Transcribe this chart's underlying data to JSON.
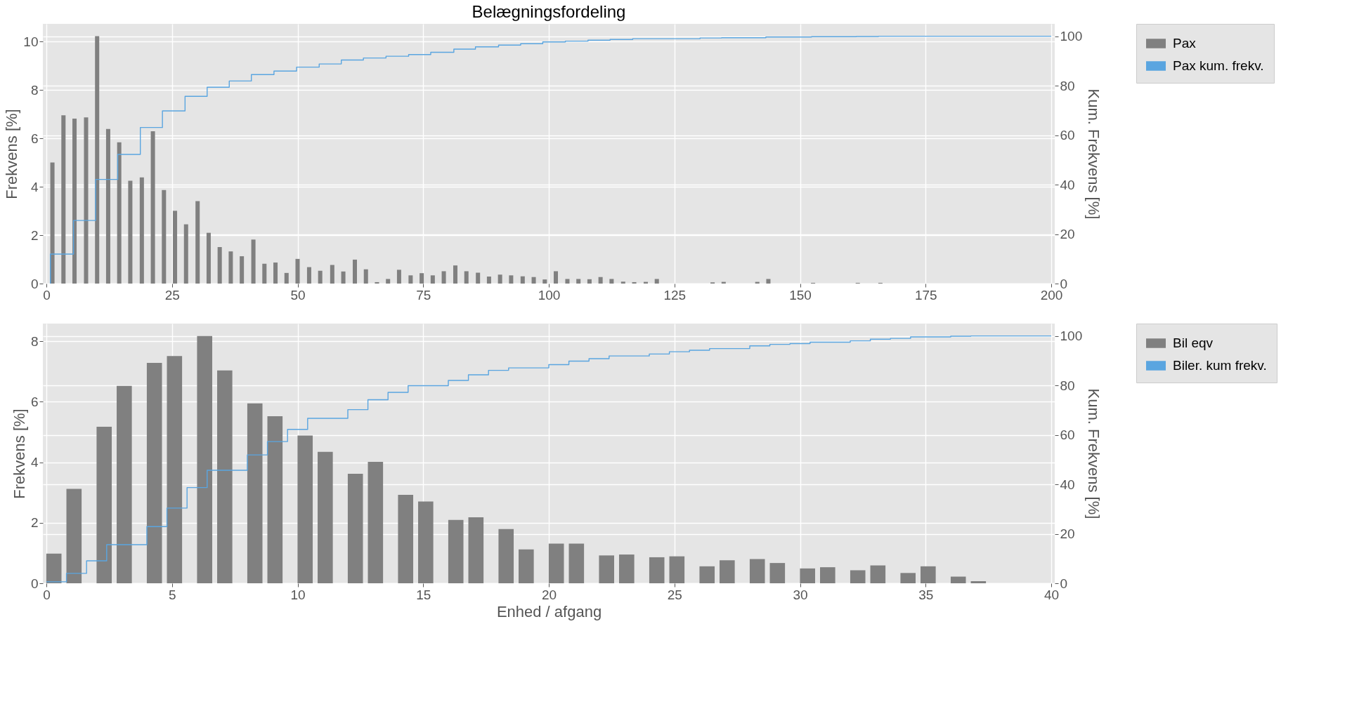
{
  "chart_data": [
    {
      "type": "bar",
      "title": "Belægningsfordeling",
      "ylabel": "Frekvens [%]",
      "y2label": "Kum. Frekvens [%]",
      "xlim": [
        0,
        200
      ],
      "xticks": [
        0,
        25,
        50,
        75,
        100,
        125,
        150,
        175,
        200
      ],
      "ylim": [
        0,
        10.74
      ],
      "yticks": [
        0,
        2,
        4,
        6,
        8,
        10
      ],
      "y2lim": [
        0,
        105
      ],
      "y2ticks": [
        0,
        20,
        40,
        60,
        80,
        100
      ],
      "grid": true,
      "legend": "top right",
      "series": [
        {
          "name": "Pax",
          "color": "#808080",
          "x": [
            1.2,
            3.4,
            5.6,
            7.9,
            10.1,
            12.3,
            14.5,
            16.7,
            19.0,
            21.2,
            23.4,
            25.6,
            27.8,
            30.1,
            32.3,
            34.5,
            36.7,
            38.9,
            41.2,
            43.4,
            45.6,
            47.8,
            50.0,
            52.3,
            54.5,
            56.9,
            59.1,
            61.4,
            63.6,
            65.8,
            68.0,
            70.2,
            72.5,
            74.7,
            76.9,
            79.1,
            81.4,
            83.6,
            85.9,
            88.1,
            90.3,
            92.5,
            94.8,
            97.0,
            99.2,
            101.4,
            103.7,
            105.9,
            108.1,
            110.3,
            112.5,
            114.8,
            117.0,
            119.3,
            121.5,
            132.6,
            134.8,
            141.5,
            143.7,
            152.6,
            161.5,
            166.0
          ],
          "values": [
            5.01,
            6.96,
            6.82,
            6.87,
            10.23,
            6.39,
            5.84,
            4.25,
            4.39,
            6.3,
            3.87,
            3.01,
            2.45,
            3.41,
            2.1,
            1.51,
            1.33,
            1.13,
            1.82,
            0.82,
            0.87,
            0.44,
            1.02,
            0.68,
            0.53,
            0.77,
            0.5,
            0.99,
            0.59,
            0.06,
            0.19,
            0.57,
            0.34,
            0.43,
            0.34,
            0.51,
            0.75,
            0.51,
            0.45,
            0.29,
            0.37,
            0.34,
            0.3,
            0.27,
            0.17,
            0.51,
            0.19,
            0.19,
            0.18,
            0.27,
            0.19,
            0.08,
            0.06,
            0.07,
            0.19,
            0.05,
            0.07,
            0.07,
            0.19,
            0.03,
            0.03,
            0.03
          ]
        },
        {
          "name": "Pax kum. frekv.",
          "type": "step",
          "axis": "y2",
          "color": "#5aa5e0",
          "x": [
            0.8,
            0.8,
            5.4,
            9.8,
            14.2,
            18.7,
            23.1,
            27.6,
            32.0,
            36.4,
            40.8,
            45.3,
            49.8,
            54.3,
            58.7,
            63.1,
            67.6,
            72.1,
            76.5,
            81.1,
            85.4,
            90.0,
            94.4,
            98.8,
            103.3,
            107.8,
            112.2,
            116.7,
            130.1,
            134.4,
            143.2,
            152.3,
            161.2,
            165.6,
            200
          ],
          "values": [
            0,
            11.9,
            25.5,
            42.1,
            52.2,
            63.1,
            69.8,
            75.7,
            79.4,
            81.9,
            84.5,
            85.9,
            87.5,
            88.8,
            90.4,
            91.2,
            91.9,
            92.6,
            93.5,
            94.8,
            95.7,
            96.4,
            97.0,
            97.7,
            98.0,
            98.4,
            98.7,
            99.0,
            99.3,
            99.4,
            99.7,
            99.8,
            99.9,
            100,
            100
          ]
        }
      ]
    },
    {
      "type": "bar",
      "xlabel": "Enhed / afgang",
      "ylabel": "Frekvens [%]",
      "y2label": "Kum. Frekvens [%]",
      "xlim": [
        0,
        40
      ],
      "xticks": [
        0,
        5,
        10,
        15,
        20,
        25,
        30,
        35,
        40
      ],
      "ylim": [
        0,
        8.58
      ],
      "yticks": [
        0,
        2,
        4,
        6,
        8
      ],
      "y2lim": [
        0,
        105
      ],
      "y2ticks": [
        0,
        20,
        40,
        60,
        80,
        100
      ],
      "grid": true,
      "legend": "top right",
      "series": [
        {
          "name": "Bil eqv",
          "color": "#808080",
          "x": [
            0.3,
            1.1,
            2.3,
            3.1,
            4.3,
            5.1,
            6.3,
            7.1,
            8.3,
            9.1,
            10.3,
            11.1,
            12.3,
            13.1,
            14.3,
            15.1,
            16.3,
            17.1,
            18.3,
            19.1,
            20.3,
            21.1,
            22.3,
            23.1,
            24.3,
            25.1,
            26.3,
            27.1,
            28.3,
            29.1,
            30.3,
            31.1,
            32.3,
            33.1,
            34.3,
            35.1,
            36.3,
            37.1
          ],
          "values": [
            0.98,
            3.12,
            5.17,
            6.52,
            7.28,
            7.51,
            8.17,
            7.03,
            5.94,
            5.52,
            4.88,
            4.34,
            3.62,
            4.01,
            2.92,
            2.7,
            2.09,
            2.18,
            1.79,
            1.12,
            1.31,
            1.31,
            0.92,
            0.95,
            0.86,
            0.89,
            0.56,
            0.76,
            0.8,
            0.67,
            0.49,
            0.53,
            0.43,
            0.59,
            0.34,
            0.56,
            0.22,
            0.07
          ]
        },
        {
          "name": "Biler. kum frekv.",
          "type": "step",
          "axis": "y2",
          "color": "#5aa5e0",
          "x": [
            0,
            0.8,
            1.6,
            2.4,
            4.0,
            4.8,
            5.6,
            6.4,
            8.0,
            8.8,
            9.6,
            10.4,
            12.0,
            12.8,
            13.6,
            14.4,
            16.0,
            16.8,
            17.6,
            18.4,
            20.0,
            20.8,
            21.6,
            22.4,
            24.0,
            24.8,
            25.6,
            26.4,
            28.0,
            28.8,
            29.6,
            30.4,
            32.0,
            32.8,
            33.6,
            34.4,
            36.0,
            36.8,
            40
          ],
          "values": [
            0.6,
            4.0,
            9.1,
            15.6,
            22.9,
            30.4,
            38.7,
            45.7,
            51.9,
            57.3,
            62.2,
            66.7,
            70.2,
            74.2,
            77.2,
            79.9,
            82.0,
            84.3,
            86.1,
            87.1,
            88.4,
            89.8,
            90.8,
            91.9,
            92.7,
            93.6,
            94.2,
            94.9,
            96.0,
            96.6,
            96.9,
            97.5,
            98.0,
            98.7,
            99.0,
            99.6,
            99.9,
            100,
            100
          ]
        }
      ]
    }
  ]
}
